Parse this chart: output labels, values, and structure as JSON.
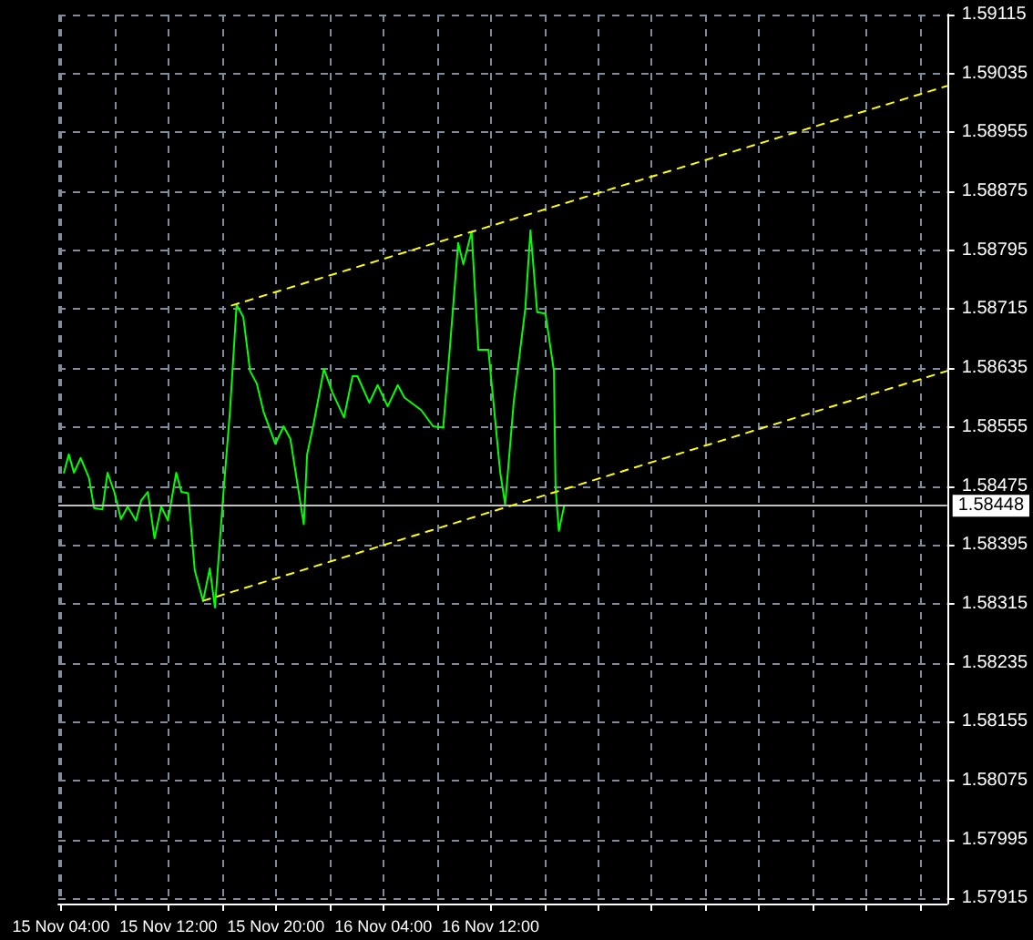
{
  "chart_data": {
    "type": "line",
    "xlim": [
      "--11-15T03:48",
      "--11-17T22:00"
    ],
    "ylim": [
      1.57908,
      1.59115
    ],
    "xticks": [
      {
        "value": "--11-15T04:00",
        "label": "15 Nov 04:00"
      },
      {
        "value": "--11-15T08:00",
        "label": null
      },
      {
        "value": "--11-15T12:00",
        "label": "15 Nov 12:00"
      },
      {
        "value": "--11-15T16:00",
        "label": null
      },
      {
        "value": "--11-15T20:00",
        "label": "15 Nov 20:00"
      },
      {
        "value": "--11-16T00:00",
        "label": null
      },
      {
        "value": "--11-16T04:00",
        "label": "16 Nov 04:00"
      },
      {
        "value": "--11-16T08:00",
        "label": null
      },
      {
        "value": "--11-16T12:00",
        "label": "16 Nov 12:00"
      },
      {
        "value": "--11-16T16:00",
        "label": null
      },
      {
        "value": "--11-16T20:00",
        "label": null
      },
      {
        "value": "--11-17T00:00",
        "label": null
      },
      {
        "value": "--11-17T04:00",
        "label": null
      },
      {
        "value": "--11-17T08:00",
        "label": null
      },
      {
        "value": "--11-17T12:00",
        "label": null
      },
      {
        "value": "--11-17T16:00",
        "label": null
      },
      {
        "value": "--11-17T20:00",
        "label": null
      }
    ],
    "yticks": [
      1.57915,
      1.57995,
      1.58075,
      1.58155,
      1.58235,
      1.58315,
      1.58395,
      1.58475,
      1.58555,
      1.58635,
      1.58715,
      1.58795,
      1.58875,
      1.58955,
      1.59035,
      1.59115
    ],
    "grid": true,
    "line_style": "solid",
    "series": [
      {
        "color": "#00ff00",
        "x": [
          "--11-15T04:13",
          "--11-15T04:35",
          "--11-15T04:58",
          "--11-15T05:28",
          "--11-15T06:05",
          "--11-15T06:28",
          "--11-15T07:05",
          "--11-15T07:28",
          "--11-15T07:58",
          "--11-15T08:28",
          "--11-15T08:58",
          "--11-15T09:35",
          "--11-15T09:58",
          "--11-15T10:28",
          "--11-15T10:58",
          "--11-15T11:28",
          "--11-15T11:58",
          "--11-15T12:35",
          "--11-15T12:58",
          "--11-15T13:28",
          "--11-15T13:58",
          "--11-15T14:35",
          "--11-15T15:05",
          "--11-15T15:28",
          "--11-15T16:05",
          "--11-15T16:35",
          "--11-15T17:05",
          "--11-15T17:35",
          "--11-15T18:05",
          "--11-15T18:35",
          "--11-15T19:05",
          "--11-15T19:58",
          "--11-15T20:35",
          "--11-15T21:05",
          "--11-15T22:05",
          "--11-15T22:20",
          "--11-15T22:50",
          "--11-15T23:35",
          "--11-16T00:13",
          "--11-16T01:05",
          "--11-16T01:43",
          "--11-16T02:05",
          "--11-16T02:58",
          "--11-16T03:35",
          "--11-16T04:20",
          "--11-16T05:05",
          "--11-16T05:35",
          "--11-16T06:50",
          "--11-16T07:43",
          "--11-16T08:28",
          "--11-16T08:58",
          "--11-16T09:35",
          "--11-16T09:58",
          "--11-16T10:35",
          "--11-16T11:05",
          "--11-16T11:50",
          "--11-16T12:43",
          "--11-16T13:05",
          "--11-16T13:43",
          "--11-16T14:35",
          "--11-16T14:58",
          "--11-16T15:28",
          "--11-16T16:05",
          "--11-16T16:43",
          "--11-16T16:50",
          "--11-16T17:05",
          "--11-16T17:28"
        ],
        "values": [
          1.58493,
          1.58518,
          1.58493,
          1.58513,
          1.58486,
          1.58445,
          1.58443,
          1.58493,
          1.58467,
          1.5843,
          1.58447,
          1.58428,
          1.58455,
          1.58467,
          1.58404,
          1.58447,
          1.58428,
          1.58493,
          1.58467,
          1.58465,
          1.5836,
          1.58319,
          1.58363,
          1.5831,
          1.58462,
          1.58576,
          1.58721,
          1.58704,
          1.58631,
          1.58614,
          1.58576,
          1.58532,
          1.58556,
          1.58539,
          1.58423,
          1.58518,
          1.58561,
          1.58634,
          1.58602,
          1.58568,
          1.58624,
          1.58624,
          1.58588,
          1.58612,
          1.58583,
          1.58612,
          1.58595,
          1.58578,
          1.58556,
          1.58554,
          1.58663,
          1.58805,
          1.58776,
          1.5882,
          1.5866,
          1.5866,
          1.58493,
          1.5845,
          1.58588,
          1.58716,
          1.58822,
          1.58711,
          1.58709,
          1.58631,
          1.58474,
          1.58414,
          1.58447
        ]
      },
      {
        "color": "#ffff00",
        "line_style": "dashed",
        "x": [
          "--11-15T16:43",
          "--11-17T21:58"
        ],
        "values": [
          1.5872,
          1.59018
        ]
      },
      {
        "color": "#ffff00",
        "line_style": "dashed",
        "x": [
          "--11-15T14:35",
          "--11-17T21:58"
        ],
        "values": [
          1.58319,
          1.58631
        ]
      }
    ],
    "ref_lines": [
      {
        "axis": "y",
        "value": 1.58448,
        "label": "1.58448",
        "color": "#c0c0c0",
        "line_style": "solid"
      }
    ]
  }
}
